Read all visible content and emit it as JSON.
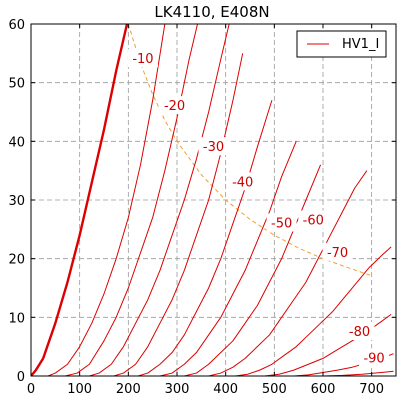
{
  "chart_data": {
    "type": "line",
    "title": "LK4110, E408N",
    "xlabel": "",
    "ylabel": "",
    "xlim": [
      0,
      750
    ],
    "ylim": [
      0,
      60
    ],
    "x_ticks": [
      0,
      100,
      200,
      300,
      400,
      500,
      600,
      700
    ],
    "y_ticks": [
      0,
      10,
      20,
      30,
      40,
      50,
      60
    ],
    "grid": true,
    "legend": {
      "placement": "top-right",
      "entries": [
        "HV1_I"
      ]
    },
    "colors": {
      "curve": "#dd0000",
      "dissipation": "#f0a030",
      "grid": "#9a9a9a",
      "axes": "#000000"
    },
    "series": [
      {
        "label": "",
        "grid_voltage": 0,
        "bold": true,
        "x": [
          0,
          10,
          25,
          50,
          75,
          100,
          125,
          150,
          175,
          200
        ],
        "y": [
          0,
          1,
          3,
          9,
          16,
          24,
          33,
          42,
          52,
          61
        ]
      },
      {
        "label": "-10",
        "grid_voltage": -10,
        "x": [
          35,
          50,
          75,
          100,
          125,
          150,
          175,
          200,
          225,
          250,
          275
        ],
        "y": [
          0,
          0.5,
          2,
          5,
          9,
          14,
          20,
          27,
          36,
          47,
          60
        ]
      },
      {
        "label": "-20",
        "grid_voltage": -20,
        "x": [
          70,
          95,
          120,
          150,
          175,
          200,
          225,
          250,
          275,
          300,
          325,
          345
        ],
        "y": [
          0,
          0.5,
          2,
          6,
          10,
          15,
          21,
          27,
          35,
          44,
          54,
          61
        ]
      },
      {
        "label": "-30",
        "grid_voltage": -30,
        "x": [
          120,
          140,
          165,
          190,
          215,
          240,
          265,
          290,
          315,
          340,
          365,
          390,
          410
        ],
        "y": [
          0,
          0.5,
          2,
          5,
          9,
          13,
          18,
          24,
          30,
          37,
          45,
          54,
          61
        ]
      },
      {
        "label": "-40",
        "grid_voltage": -40,
        "x": [
          170,
          190,
          215,
          240,
          265,
          290,
          315,
          340,
          365,
          390,
          415,
          435
        ],
        "y": [
          0,
          0.5,
          2,
          5,
          9,
          13,
          18,
          24,
          30,
          38,
          47,
          55
        ]
      },
      {
        "label": "-50",
        "grid_voltage": -50,
        "x": [
          220,
          240,
          265,
          290,
          315,
          340,
          365,
          390,
          415,
          440,
          465,
          495
        ],
        "y": [
          0,
          0.5,
          2,
          4,
          7,
          11,
          15,
          20,
          26,
          32,
          39,
          47
        ]
      },
      {
        "label": "-60",
        "grid_voltage": -60,
        "x": [
          265,
          290,
          315,
          340,
          365,
          390,
          415,
          440,
          465,
          490,
          515,
          545
        ],
        "y": [
          0,
          0.5,
          2,
          4,
          7,
          10,
          14,
          18,
          23,
          28,
          34,
          40
        ]
      },
      {
        "label": "-70",
        "grid_voltage": -70,
        "x": [
          315,
          340,
          365,
          390,
          415,
          440,
          465,
          490,
          515,
          540,
          565,
          595
        ],
        "y": [
          0,
          0.5,
          2,
          4,
          6,
          9,
          12,
          16,
          20,
          25,
          30,
          36
        ]
      },
      {
        "label": "-80",
        "grid_voltage": -80,
        "x": [
          365,
          390,
          415,
          440,
          465,
          490,
          515,
          540,
          565,
          590,
          615,
          640,
          665,
          690
        ],
        "y": [
          0,
          0.5,
          1.5,
          3,
          5,
          7,
          10,
          13,
          16,
          20,
          24,
          28,
          32,
          35
        ]
      },
      {
        "label": "-90",
        "grid_voltage": -90,
        "x": [
          420,
          445,
          470,
          495,
          520,
          545,
          570,
          595,
          620,
          645,
          670,
          695,
          720,
          740
        ],
        "y": [
          0,
          0.3,
          1,
          2,
          3.5,
          5,
          7,
          9,
          11,
          13.5,
          16,
          18.5,
          20.5,
          22
        ]
      },
      {
        "label": "",
        "grid_voltage": -100,
        "x": [
          480,
          510,
          540,
          570,
          600,
          630,
          660,
          690,
          715,
          740
        ],
        "y": [
          0,
          0.3,
          1,
          2,
          3,
          4.5,
          6,
          7.5,
          9,
          10.5
        ]
      },
      {
        "label": "",
        "grid_voltage": -110,
        "x": [
          540,
          570,
          600,
          630,
          660,
          690,
          720,
          745
        ],
        "y": [
          0,
          0.2,
          0.6,
          1,
          1.5,
          2.2,
          3,
          3.8
        ]
      },
      {
        "label": "",
        "grid_voltage": -120,
        "x": [
          600,
          640,
          680,
          720,
          745
        ],
        "y": [
          0,
          0.1,
          0.3,
          0.6,
          0.8
        ]
      }
    ],
    "dissipation_curve": {
      "label": "",
      "x": [
        200,
        225,
        250,
        275,
        300,
        350,
        400,
        450,
        500,
        550,
        600,
        650,
        700
      ],
      "y": [
        60,
        53.3,
        48,
        43.6,
        40,
        34.3,
        30,
        26.7,
        24,
        21.8,
        20,
        18.5,
        17.1
      ]
    },
    "curve_label_anchors": [
      {
        "text": "-10",
        "x": 230,
        "y": 54
      },
      {
        "text": "-20",
        "x": 295,
        "y": 46
      },
      {
        "text": "-30",
        "x": 375,
        "y": 39
      },
      {
        "text": "-40",
        "x": 435,
        "y": 33
      },
      {
        "text": "-50",
        "x": 515,
        "y": 26
      },
      {
        "text": "-60",
        "x": 580,
        "y": 26.5
      },
      {
        "text": "-70",
        "x": 630,
        "y": 21
      },
      {
        "text": "-80",
        "x": 675,
        "y": 7.5
      },
      {
        "text": "-90",
        "x": 705,
        "y": 3
      }
    ]
  }
}
